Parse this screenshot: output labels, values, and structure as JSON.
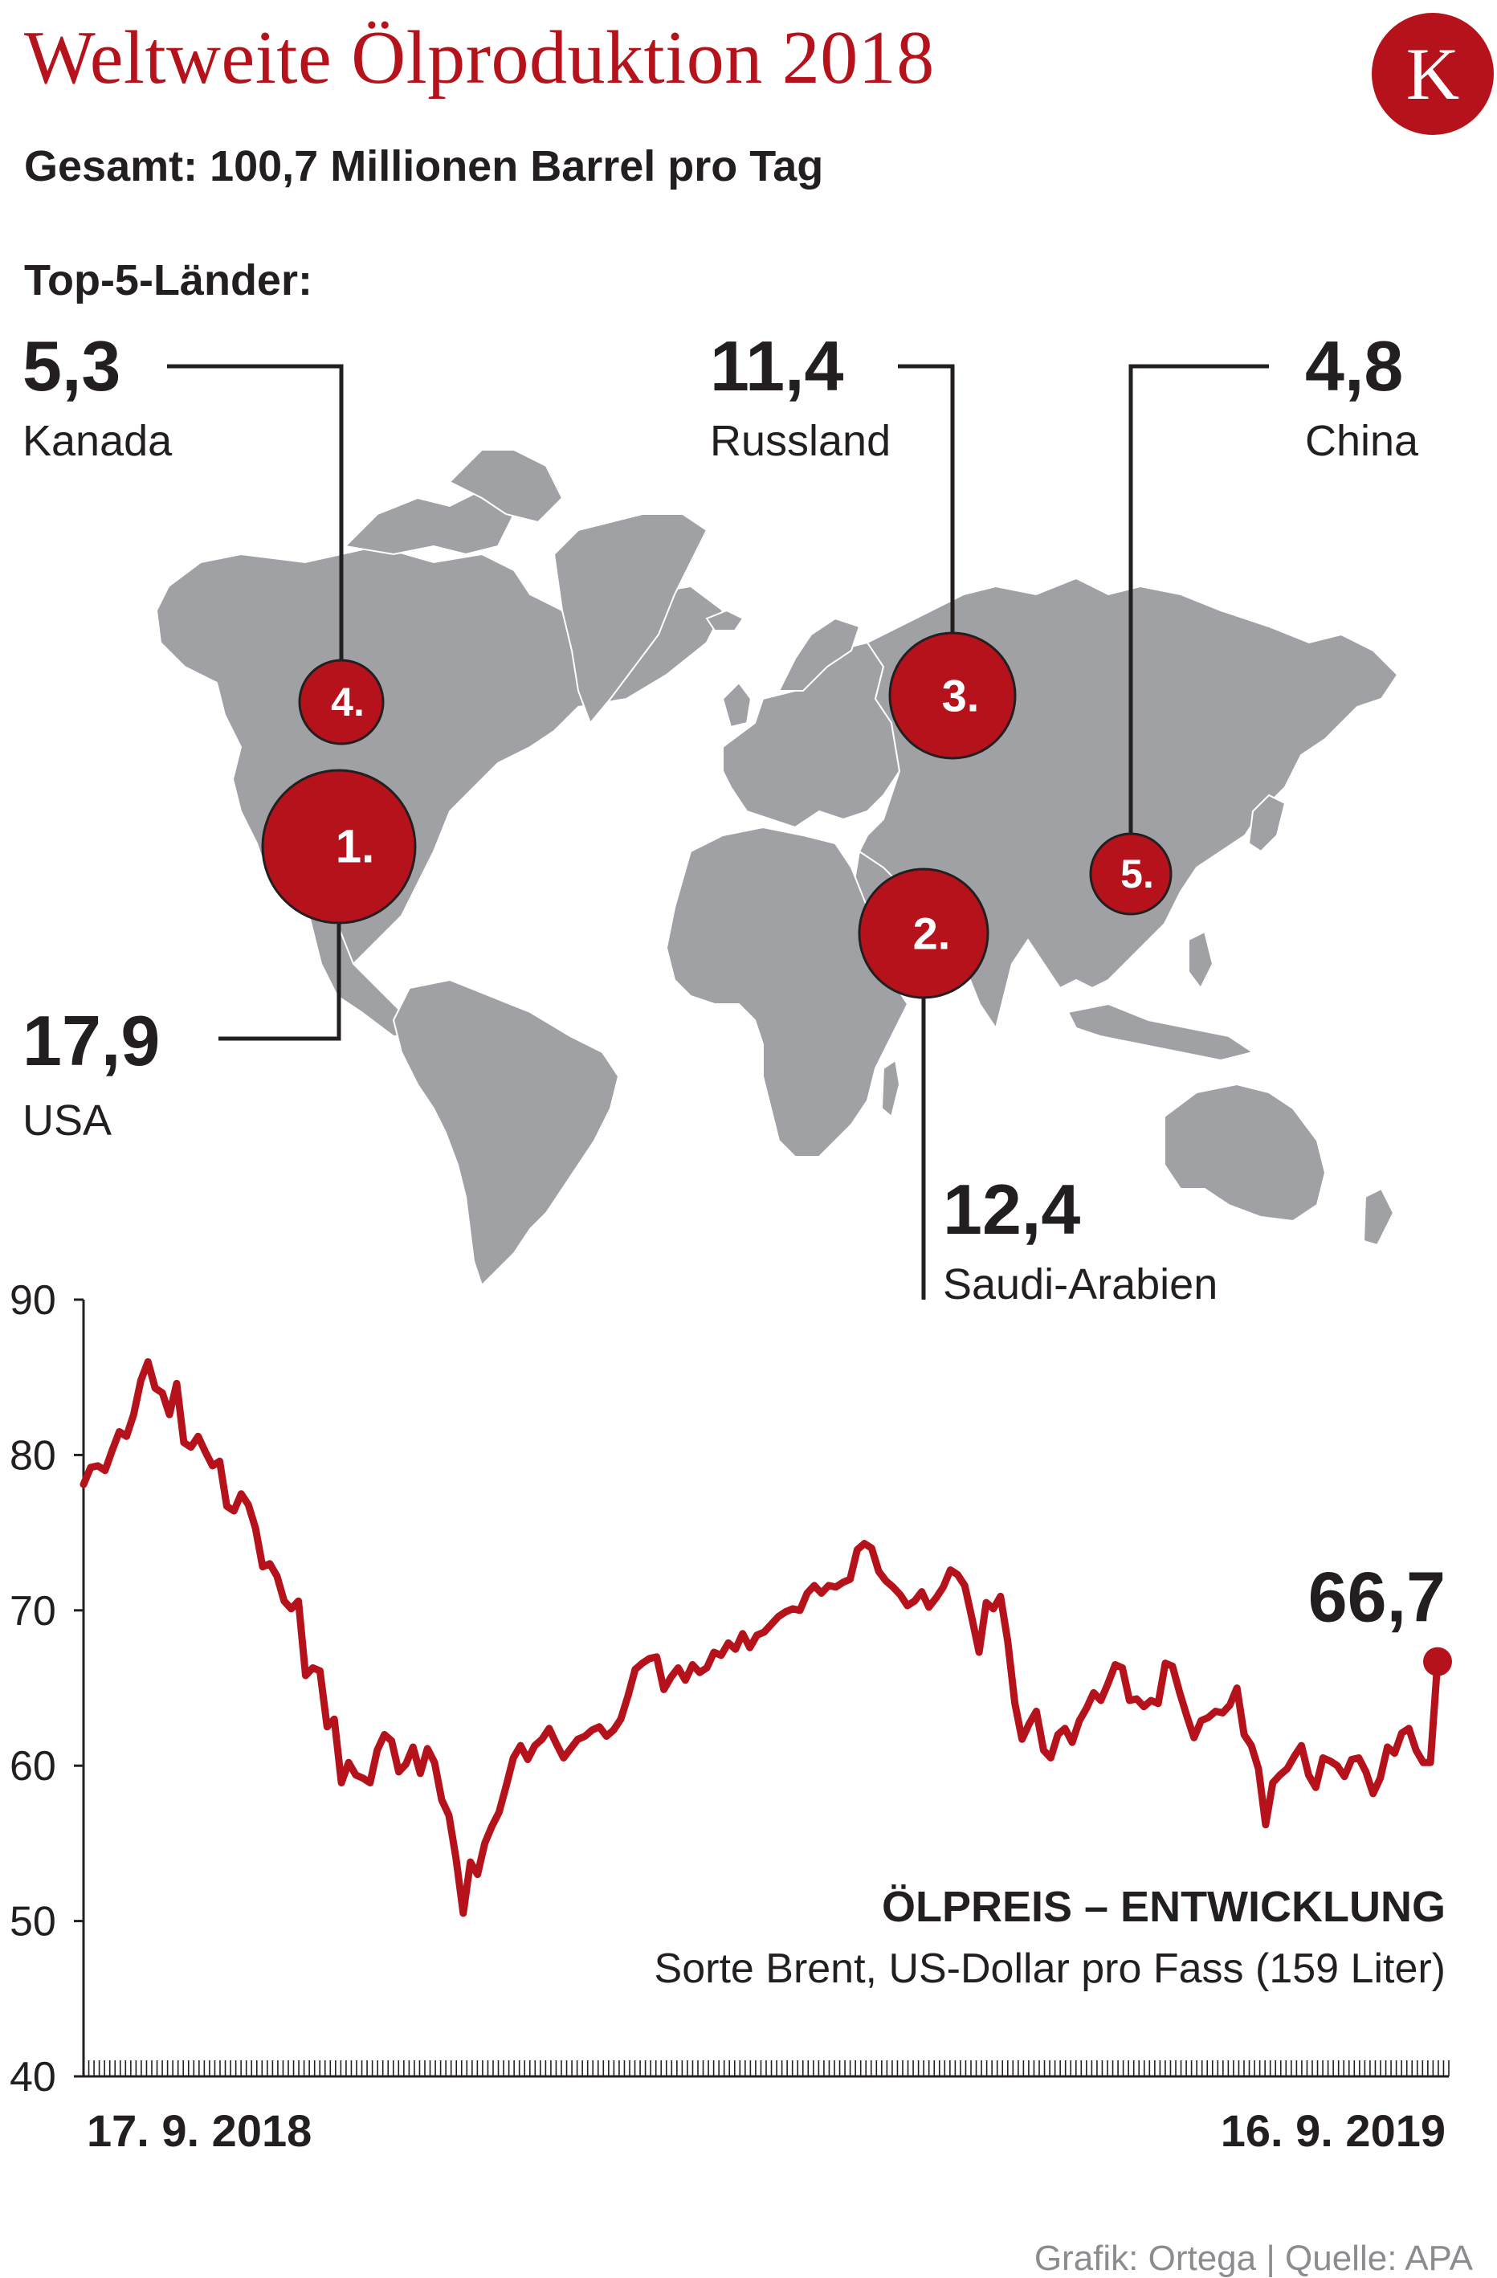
{
  "header": {
    "title": "Weltweite Ölproduktion 2018",
    "subtitle": "Gesamt: 100,7 Millionen Barrel pro Tag",
    "top5_label": "Top-5-Länder:",
    "logo_letter": "K"
  },
  "countries": [
    {
      "rank": "1.",
      "value": "17,9",
      "name": "USA"
    },
    {
      "rank": "2.",
      "value": "12,4",
      "name": "Saudi-Arabien"
    },
    {
      "rank": "3.",
      "value": "11,4",
      "name": "Russland"
    },
    {
      "rank": "4.",
      "value": "5,3",
      "name": "Kanada"
    },
    {
      "rank": "5.",
      "value": "4,8",
      "name": "China"
    }
  ],
  "colors": {
    "accent": "#b5121b",
    "land": "#9fa1a4",
    "text": "#231f20",
    "credit": "#8a8c8f"
  },
  "chart_data": {
    "type": "line",
    "title": "ÖLPREIS – ENTWICKLUNG",
    "subtitle": "Sorte Brent, US-Dollar pro Fass (159 Liter)",
    "x_start_label": "17. 9. 2018",
    "x_end_label": "16. 9. 2019",
    "ylim": [
      40,
      90
    ],
    "yticks": [
      90,
      80,
      70,
      60,
      50,
      40
    ],
    "last_value_label": "66,7",
    "series": [
      {
        "values": [
          78.1,
          79.2,
          79.3,
          79.0,
          80.3,
          81.5,
          81.2,
          82.6,
          84.8,
          86.0,
          84.3,
          84.0,
          82.6,
          84.6,
          80.8,
          80.5,
          81.2,
          80.2,
          79.3,
          79.6,
          76.7,
          76.4,
          77.5,
          76.8,
          75.3,
          72.8,
          73.0,
          72.2,
          70.6,
          70.1,
          70.6,
          65.8,
          66.3,
          66.1,
          62.5,
          63.0,
          58.9,
          60.2,
          59.4,
          59.2,
          58.9,
          61.0,
          62.0,
          61.6,
          59.6,
          60.1,
          61.2,
          59.5,
          61.1,
          60.2,
          57.8,
          56.8,
          54.0,
          50.5,
          53.8,
          53.0,
          55.0,
          56.1,
          57.0,
          58.7,
          60.5,
          61.3,
          60.4,
          61.3,
          61.7,
          62.4,
          61.4,
          60.5,
          61.1,
          61.7,
          61.9,
          62.3,
          62.5,
          61.9,
          62.3,
          63.0,
          64.5,
          66.2,
          66.6,
          66.9,
          67.0,
          64.9,
          65.7,
          66.3,
          65.5,
          66.5,
          66.0,
          66.3,
          67.3,
          67.1,
          67.9,
          67.5,
          68.5,
          67.6,
          68.4,
          68.6,
          69.1,
          69.6,
          69.9,
          70.1,
          70.0,
          71.1,
          71.6,
          71.1,
          71.6,
          71.5,
          71.8,
          72.0,
          73.9,
          74.3,
          74.0,
          72.5,
          71.9,
          71.5,
          71.0,
          70.3,
          70.6,
          71.2,
          70.2,
          70.8,
          71.5,
          72.6,
          72.3,
          71.6,
          69.5,
          67.3,
          70.5,
          70.1,
          70.9,
          68.0,
          64.0,
          61.7,
          62.7,
          63.5,
          61.0,
          60.5,
          62.0,
          62.4,
          61.5,
          62.9,
          63.7,
          64.7,
          64.2,
          65.3,
          66.5,
          66.3,
          64.2,
          64.3,
          63.8,
          64.2,
          64.0,
          66.6,
          66.4,
          64.7,
          63.2,
          61.8,
          62.9,
          63.1,
          63.5,
          63.4,
          63.9,
          65.0,
          62.0,
          61.3,
          59.8,
          56.2,
          58.9,
          59.4,
          59.8,
          60.6,
          61.3,
          59.4,
          58.6,
          60.5,
          60.3,
          60.0,
          59.3,
          60.4,
          60.5,
          59.6,
          58.2,
          59.2,
          61.2,
          60.8,
          62.1,
          62.4,
          61.0,
          60.2,
          60.2,
          66.7
        ]
      }
    ],
    "grid": false,
    "legend": "none"
  },
  "credit": "Grafik:  Ortega | Quelle: APA"
}
